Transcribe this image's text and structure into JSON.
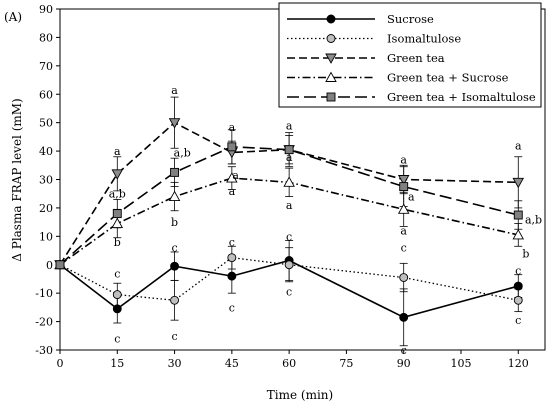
{
  "panel_label": "(A)",
  "chart_data": {
    "type": "line",
    "title": "",
    "xlabel": "Time (min)",
    "ylabel": "Δ Plasma FRAP level (mM)",
    "xlim": [
      0,
      127
    ],
    "ylim": [
      -30,
      90
    ],
    "xticks": [
      0,
      15,
      30,
      45,
      60,
      75,
      90,
      105,
      120
    ],
    "yticks": [
      -30,
      -20,
      -10,
      0,
      10,
      20,
      30,
      40,
      50,
      60,
      70,
      80,
      90
    ],
    "legend_position": "top-right",
    "series": [
      {
        "name": "Sucrose",
        "line": "solid",
        "marker": "circle",
        "marker_fill": "#000000",
        "x": [
          0,
          15,
          30,
          45,
          60,
          90,
          120
        ],
        "y": [
          0,
          -15.5,
          -0.5,
          -4,
          1.5,
          -18.5,
          -7.5
        ],
        "err": [
          0,
          5,
          5,
          6,
          7,
          10,
          4
        ]
      },
      {
        "name": "Isomaltulose",
        "line": "dotted",
        "marker": "circle",
        "marker_fill": "#bfbfbf",
        "x": [
          0,
          15,
          30,
          45,
          60,
          90,
          120
        ],
        "y": [
          0,
          -10.5,
          -12.5,
          2.5,
          0,
          -4.5,
          -12.5
        ],
        "err": [
          0,
          4,
          7,
          4,
          6,
          5,
          4
        ]
      },
      {
        "name": "Green tea",
        "line": "dashed",
        "marker": "triangle-down",
        "marker_fill": "#8c8c8c",
        "x": [
          0,
          15,
          30,
          45,
          60,
          90,
          120
        ],
        "y": [
          0,
          32,
          50,
          39.5,
          40.5,
          30,
          29
        ],
        "err": [
          0,
          6,
          9,
          4,
          5,
          5,
          9
        ]
      },
      {
        "name": "Green tea + Sucrose",
        "line": "dashdot",
        "marker": "triangle-up",
        "marker_fill": "#ffffff",
        "x": [
          0,
          15,
          30,
          45,
          60,
          90,
          120
        ],
        "y": [
          0,
          14.5,
          24,
          30.5,
          29,
          19.5,
          10.5
        ],
        "err": [
          0,
          5,
          5,
          4,
          5,
          6,
          4
        ]
      },
      {
        "name": "Green tea + Isomaltulose",
        "line": "longdash",
        "marker": "square",
        "marker_fill": "#808080",
        "x": [
          0,
          15,
          30,
          45,
          60,
          90,
          120
        ],
        "y": [
          0,
          18,
          32.5,
          41.5,
          40.5,
          27.5,
          17.5
        ],
        "err": [
          0,
          5,
          5,
          6,
          6,
          7,
          5
        ]
      }
    ],
    "annotations": [
      {
        "text": "a",
        "x": 15,
        "y": 40
      },
      {
        "text": "a,b",
        "x": 15,
        "y": 25
      },
      {
        "text": "b",
        "x": 15,
        "y": 8
      },
      {
        "text": "c",
        "x": 15,
        "y": -3
      },
      {
        "text": "c",
        "x": 15,
        "y": -26
      },
      {
        "text": "a",
        "x": 30,
        "y": 61.5
      },
      {
        "text": "a,b",
        "x": 32,
        "y": 39.5
      },
      {
        "text": "b",
        "x": 30,
        "y": 15
      },
      {
        "text": "c",
        "x": 30,
        "y": 6
      },
      {
        "text": "c",
        "x": 30,
        "y": -25
      },
      {
        "text": "a",
        "x": 45,
        "y": 48.5
      },
      {
        "text": "a",
        "x": 46,
        "y": 31.5
      },
      {
        "text": "a",
        "x": 45,
        "y": 26
      },
      {
        "text": "c",
        "x": 45,
        "y": 8
      },
      {
        "text": "c",
        "x": 45,
        "y": -15
      },
      {
        "text": "a",
        "x": 60,
        "y": 49
      },
      {
        "text": "a",
        "x": 60,
        "y": 38
      },
      {
        "text": "a",
        "x": 60,
        "y": 21
      },
      {
        "text": "c",
        "x": 60,
        "y": 10
      },
      {
        "text": "c",
        "x": 60,
        "y": -9.5
      },
      {
        "text": "a",
        "x": 90,
        "y": 37
      },
      {
        "text": "a",
        "x": 92,
        "y": 24
      },
      {
        "text": "a",
        "x": 90,
        "y": 12
      },
      {
        "text": "c",
        "x": 90,
        "y": 6
      },
      {
        "text": "c",
        "x": 90,
        "y": -30
      },
      {
        "text": "a",
        "x": 120,
        "y": 42
      },
      {
        "text": "a,b",
        "x": 124,
        "y": 16
      },
      {
        "text": "b",
        "x": 122,
        "y": 4
      },
      {
        "text": "c",
        "x": 120,
        "y": -2
      },
      {
        "text": "c",
        "x": 120,
        "y": -19.5
      }
    ]
  }
}
